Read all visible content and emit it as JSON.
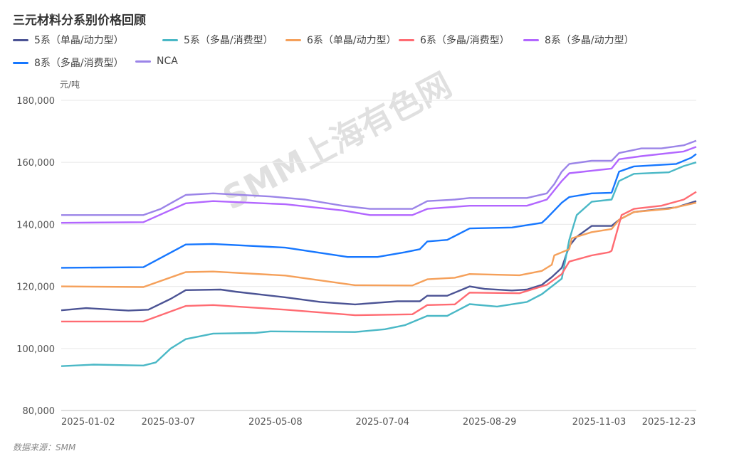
{
  "chart_data": {
    "type": "line",
    "title": "三元材料分系别价格回顾",
    "ylabel": "元/吨",
    "xlabel": "",
    "ylim": [
      80000,
      180000
    ],
    "yticks": [
      80000,
      100000,
      120000,
      140000,
      160000,
      180000
    ],
    "ytick_labels": [
      "80,000",
      "100,000",
      "120,000",
      "140,000",
      "160,000",
      "180,000"
    ],
    "x_range": [
      0,
      255
    ],
    "x_unit": "trading-day index",
    "xticks": [
      {
        "x": 0,
        "label": "2025-01-02"
      },
      {
        "x": 43,
        "label": "2025-03-07"
      },
      {
        "x": 86,
        "label": "2025-05-08"
      },
      {
        "x": 129,
        "label": "2025-07-04"
      },
      {
        "x": 172,
        "label": "2025-08-29"
      },
      {
        "x": 216,
        "label": "2025-11-03"
      },
      {
        "x": 244,
        "label": "2025-12-23"
      }
    ],
    "grid": true,
    "legend_position": "top-left",
    "source": "数据来源：SMM",
    "watermark": "SMM上海有色网",
    "series": [
      {
        "name": "5系（单晶/动力型）",
        "color": "#4b5394",
        "points": [
          [
            0,
            112300
          ],
          [
            10,
            113000
          ],
          [
            27,
            112200
          ],
          [
            35,
            112500
          ],
          [
            44,
            116000
          ],
          [
            50,
            118800
          ],
          [
            64,
            119000
          ],
          [
            70,
            118300
          ],
          [
            90,
            116500
          ],
          [
            104,
            115000
          ],
          [
            118,
            114200
          ],
          [
            135,
            115200
          ],
          [
            144,
            115200
          ],
          [
            147,
            117000
          ],
          [
            155,
            117000
          ],
          [
            161,
            119000
          ],
          [
            164,
            120000
          ],
          [
            170,
            119200
          ],
          [
            181,
            118700
          ],
          [
            187,
            119000
          ],
          [
            193,
            120500
          ],
          [
            197,
            123000
          ],
          [
            201,
            126000
          ],
          [
            204,
            133000
          ],
          [
            207,
            136000
          ],
          [
            213,
            139500
          ],
          [
            221,
            139500
          ],
          [
            224,
            141500
          ],
          [
            230,
            144000
          ],
          [
            247,
            145500
          ],
          [
            255,
            147500
          ]
        ]
      },
      {
        "name": "5系（多晶/消费型）",
        "color": "#4ab8c6",
        "points": [
          [
            0,
            94300
          ],
          [
            13,
            94800
          ],
          [
            33,
            94500
          ],
          [
            38,
            95500
          ],
          [
            44,
            100000
          ],
          [
            50,
            103000
          ],
          [
            61,
            104800
          ],
          [
            78,
            105000
          ],
          [
            84,
            105500
          ],
          [
            118,
            105300
          ],
          [
            130,
            106200
          ],
          [
            138,
            107500
          ],
          [
            147,
            110500
          ],
          [
            155,
            110500
          ],
          [
            164,
            114300
          ],
          [
            175,
            113500
          ],
          [
            187,
            115000
          ],
          [
            193,
            117500
          ],
          [
            201,
            122500
          ],
          [
            204,
            135000
          ],
          [
            207,
            143000
          ],
          [
            213,
            147300
          ],
          [
            221,
            148000
          ],
          [
            224,
            154000
          ],
          [
            230,
            156300
          ],
          [
            244,
            156800
          ],
          [
            250,
            158800
          ],
          [
            255,
            160000
          ]
        ]
      },
      {
        "name": "6系（单晶/动力型）",
        "color": "#f5a05a",
        "points": [
          [
            0,
            120000
          ],
          [
            33,
            119800
          ],
          [
            50,
            124600
          ],
          [
            61,
            124800
          ],
          [
            90,
            123500
          ],
          [
            118,
            120400
          ],
          [
            141,
            120300
          ],
          [
            147,
            122300
          ],
          [
            158,
            122800
          ],
          [
            164,
            124000
          ],
          [
            184,
            123600
          ],
          [
            193,
            125000
          ],
          [
            197,
            127000
          ],
          [
            198,
            130000
          ],
          [
            204,
            132000
          ],
          [
            205,
            135500
          ],
          [
            213,
            137500
          ],
          [
            221,
            138500
          ],
          [
            224,
            141500
          ],
          [
            230,
            144000
          ],
          [
            244,
            145000
          ],
          [
            255,
            147000
          ]
        ]
      },
      {
        "name": "6系（多晶/消费型）",
        "color": "#ff6b72",
        "points": [
          [
            0,
            108700
          ],
          [
            33,
            108700
          ],
          [
            50,
            113700
          ],
          [
            61,
            114000
          ],
          [
            90,
            112500
          ],
          [
            118,
            110700
          ],
          [
            141,
            111000
          ],
          [
            147,
            114000
          ],
          [
            158,
            114200
          ],
          [
            164,
            118000
          ],
          [
            184,
            117800
          ],
          [
            195,
            120500
          ],
          [
            201,
            124000
          ],
          [
            204,
            128000
          ],
          [
            213,
            130000
          ],
          [
            220,
            131000
          ],
          [
            221,
            131500
          ],
          [
            225,
            143000
          ],
          [
            230,
            145000
          ],
          [
            241,
            146000
          ],
          [
            250,
            148000
          ],
          [
            255,
            150500
          ]
        ]
      },
      {
        "name": "8系（多晶/动力型）",
        "color": "#b266ff",
        "points": [
          [
            0,
            140500
          ],
          [
            33,
            140700
          ],
          [
            50,
            146800
          ],
          [
            61,
            147500
          ],
          [
            90,
            146500
          ],
          [
            113,
            144500
          ],
          [
            124,
            143000
          ],
          [
            141,
            143000
          ],
          [
            147,
            145000
          ],
          [
            164,
            146000
          ],
          [
            187,
            146000
          ],
          [
            195,
            148000
          ],
          [
            201,
            154000
          ],
          [
            204,
            156500
          ],
          [
            221,
            158000
          ],
          [
            224,
            161000
          ],
          [
            233,
            162000
          ],
          [
            250,
            163500
          ],
          [
            255,
            165000
          ]
        ]
      },
      {
        "name": "8系（多晶/消费型）",
        "color": "#1677ff",
        "points": [
          [
            0,
            126000
          ],
          [
            33,
            126200
          ],
          [
            50,
            133500
          ],
          [
            61,
            133700
          ],
          [
            90,
            132500
          ],
          [
            115,
            129500
          ],
          [
            127,
            129500
          ],
          [
            138,
            131000
          ],
          [
            144,
            132000
          ],
          [
            147,
            134500
          ],
          [
            155,
            135000
          ],
          [
            164,
            138700
          ],
          [
            181,
            139000
          ],
          [
            193,
            140500
          ],
          [
            195,
            142000
          ],
          [
            201,
            147000
          ],
          [
            204,
            148800
          ],
          [
            213,
            150000
          ],
          [
            221,
            150200
          ],
          [
            224,
            157000
          ],
          [
            230,
            158700
          ],
          [
            247,
            159500
          ],
          [
            253,
            161500
          ],
          [
            255,
            162700
          ]
        ]
      },
      {
        "name": "NCA",
        "color": "#9b84e8",
        "points": [
          [
            0,
            143000
          ],
          [
            33,
            143000
          ],
          [
            40,
            145000
          ],
          [
            50,
            149500
          ],
          [
            61,
            150000
          ],
          [
            84,
            149000
          ],
          [
            98,
            148000
          ],
          [
            113,
            146000
          ],
          [
            124,
            145000
          ],
          [
            141,
            145000
          ],
          [
            147,
            147500
          ],
          [
            158,
            148000
          ],
          [
            164,
            148500
          ],
          [
            187,
            148500
          ],
          [
            195,
            150000
          ],
          [
            198,
            153000
          ],
          [
            201,
            157000
          ],
          [
            204,
            159500
          ],
          [
            213,
            160500
          ],
          [
            221,
            160500
          ],
          [
            224,
            163000
          ],
          [
            233,
            164500
          ],
          [
            241,
            164500
          ],
          [
            250,
            165500
          ],
          [
            255,
            167000
          ]
        ]
      }
    ]
  }
}
